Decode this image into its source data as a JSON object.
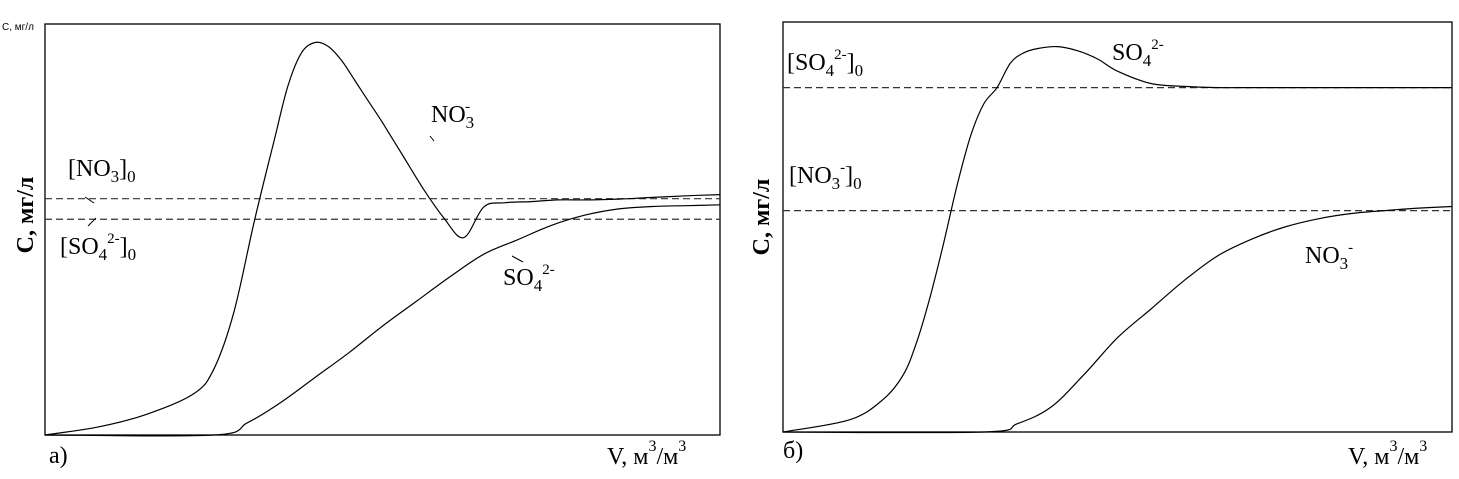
{
  "chart_data": [
    {
      "type": "line",
      "panel_label": "а)",
      "corner_text": "С, мг/л",
      "ylabel": "С, мг/л",
      "xlabel": "V, м",
      "xlabel_sup1": "3",
      "xlabel_mid": "/м",
      "xlabel_sup2": "3",
      "xlim": [
        0,
        100
      ],
      "ylim": [
        0,
        100
      ],
      "series": [
        {
          "name": "NO₃⁻",
          "label_main": "NO",
          "label_sub": "3",
          "label_sup": "-",
          "x": [
            0,
            8,
            15,
            22,
            25,
            28,
            31,
            34,
            36,
            38,
            40,
            42,
            44,
            46,
            48,
            50,
            53,
            56,
            59,
            62,
            65,
            68,
            72,
            76,
            80,
            85,
            90,
            95,
            100
          ],
          "y": [
            0,
            2,
            5,
            10,
            16,
            30,
            52,
            72,
            85,
            93,
            95.5,
            94.5,
            91,
            86,
            81,
            76,
            68,
            60,
            53,
            48,
            55.5,
            56.5,
            56.8,
            57.2,
            57.2,
            57.4,
            57.8,
            58.2,
            58.5
          ]
        },
        {
          "name": "SO₄²⁻",
          "label_main": "SO",
          "label_sub": "4",
          "label_sup": "2-",
          "x": [
            0,
            25,
            30,
            35,
            40,
            45,
            50,
            55,
            60,
            65,
            70,
            75,
            80,
            85,
            90,
            95,
            100
          ],
          "y": [
            0,
            0,
            3,
            8,
            14,
            20,
            26.5,
            32.5,
            38.5,
            44,
            47.5,
            51,
            53.5,
            55,
            55.6,
            55.8,
            56
          ]
        }
      ],
      "reference_lines": [
        {
          "name": "[NO₃]₀",
          "label_open": "[NO",
          "label_sub": "3",
          "label_sup": "",
          "label_close": "]",
          "label_sub2": "0",
          "y": 57.5
        },
        {
          "name": "[SO₄²⁻]₀",
          "label_open": "[SO",
          "label_sub": "4",
          "label_sup": "2-",
          "label_close": "]",
          "label_sub2": "0",
          "y": 52.5
        }
      ],
      "grid": false
    },
    {
      "type": "line",
      "panel_label": "б)",
      "corner_text": "",
      "ylabel": "С, мг/л",
      "xlabel": "V, м",
      "xlabel_sup1": "3",
      "xlabel_mid": "/м",
      "xlabel_sup2": "3",
      "xlim": [
        0,
        100
      ],
      "ylim": [
        0,
        100
      ],
      "series": [
        {
          "name": "SO₄²⁻",
          "label_main": "SO",
          "label_sub": "4",
          "label_sup": "2-",
          "x": [
            0,
            10,
            15,
            18,
            20,
            22,
            24,
            26,
            28,
            30,
            32,
            34,
            36,
            38,
            41,
            44,
            47,
            50,
            55,
            60,
            65,
            70,
            80,
            90,
            100
          ],
          "y": [
            0,
            3,
            8,
            14,
            22,
            33,
            46,
            60,
            72,
            80,
            84,
            90,
            92.5,
            93.5,
            94,
            93,
            91,
            88,
            85,
            84.3,
            84,
            84,
            84,
            84,
            84
          ]
        },
        {
          "name": "NO₃⁻",
          "label_main": "NO",
          "label_sub": "3",
          "label_sup": "-",
          "x": [
            0,
            30,
            35,
            40,
            45,
            50,
            55,
            60,
            65,
            70,
            75,
            80,
            85,
            90,
            95,
            100
          ],
          "y": [
            0,
            0,
            2,
            6,
            14,
            23,
            30,
            37,
            43,
            47,
            50,
            52,
            53.3,
            54,
            54.6,
            55
          ]
        }
      ],
      "reference_lines": [
        {
          "name": "[SO₄²⁻]₀",
          "label_open": "[SO",
          "label_sub": "4",
          "label_sup": "2-",
          "label_close": "]",
          "label_sub2": "0",
          "y": 84
        },
        {
          "name": "[NO₃⁻]₀",
          "label_open": "[NO",
          "label_sub": "3",
          "label_sup": "-",
          "label_close": "]",
          "label_sub2": "0",
          "y": 54
        }
      ],
      "grid": false
    }
  ]
}
